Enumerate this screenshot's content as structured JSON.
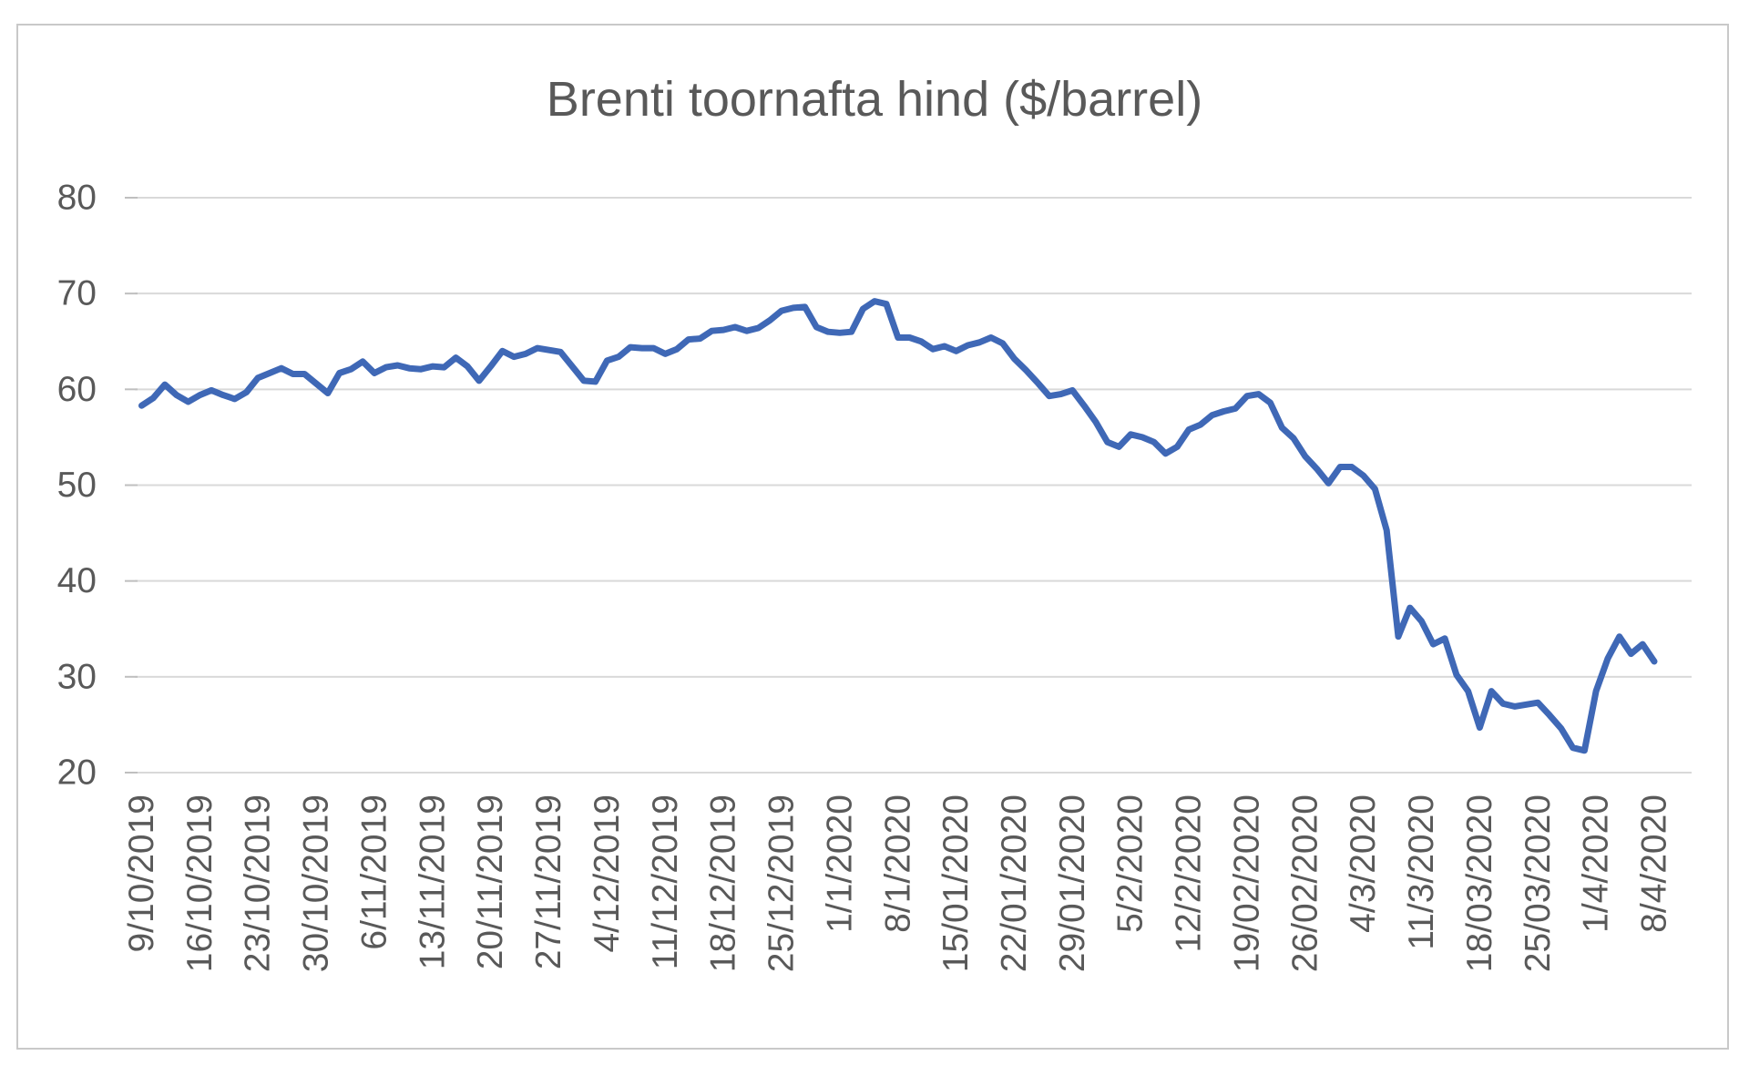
{
  "window": {
    "background": "#ffffff",
    "border_color": "#c9c9c9"
  },
  "chart_data": {
    "type": "line",
    "title": "Brenti toornafta hind ($/barrel)",
    "title_color": "#595959",
    "label_color": "#595959",
    "grid": true,
    "grid_color": "#d9d9d9",
    "tick_color": "#bfbfbf",
    "legend": "none",
    "ylim": [
      20,
      80
    ],
    "y_ticks": [
      80,
      70,
      60,
      50,
      40,
      30,
      20
    ],
    "x_tick_every": 5,
    "x_tick_labels": [
      "9/10/2019",
      "16/10/2019",
      "23/10/2019",
      "30/10/2019",
      "6/11/2019",
      "13/11/2019",
      "20/11/2019",
      "27/11/2019",
      "4/12/2019",
      "11/12/2019",
      "18/12/2019",
      "25/12/2019",
      "1/1/2020",
      "8/1/2020",
      "15/01/2020",
      "22/01/2020",
      "29/01/2020",
      "5/2/2020",
      "12/2/2020",
      "19/02/2020",
      "26/02/2020",
      "4/3/2020",
      "11/3/2020",
      "18/03/2020",
      "25/03/2020",
      "1/4/2020",
      "8/4/2020"
    ],
    "line_width": 7,
    "series": [
      {
        "name": "Brenti toornafta hind",
        "color": "#3f68b6",
        "dates": [
          "9/10/2019",
          "10/10/2019",
          "11/10/2019",
          "14/10/2019",
          "15/10/2019",
          "16/10/2019",
          "17/10/2019",
          "18/10/2019",
          "21/10/2019",
          "22/10/2019",
          "23/10/2019",
          "24/10/2019",
          "25/10/2019",
          "28/10/2019",
          "29/10/2019",
          "30/10/2019",
          "31/10/2019",
          "1/11/2019",
          "4/11/2019",
          "5/11/2019",
          "6/11/2019",
          "7/11/2019",
          "8/11/2019",
          "11/11/2019",
          "12/11/2019",
          "13/11/2019",
          "14/11/2019",
          "15/11/2019",
          "18/11/2019",
          "19/11/2019",
          "20/11/2019",
          "21/11/2019",
          "22/11/2019",
          "25/11/2019",
          "26/11/2019",
          "27/11/2019",
          "28/11/2019",
          "29/11/2019",
          "2/12/2019",
          "3/12/2019",
          "4/12/2019",
          "5/12/2019",
          "6/12/2019",
          "9/12/2019",
          "10/12/2019",
          "11/12/2019",
          "12/12/2019",
          "13/12/2019",
          "16/12/2019",
          "17/12/2019",
          "18/12/2019",
          "19/12/2019",
          "20/12/2019",
          "23/12/2019",
          "24/12/2019",
          "25/12/2019",
          "26/12/2019",
          "27/12/2019",
          "30/12/2019",
          "31/12/2019",
          "1/1/2020",
          "2/1/2020",
          "3/1/2020",
          "6/1/2020",
          "7/1/2020",
          "8/1/2020",
          "9/1/2020",
          "10/1/2020",
          "13/1/2020",
          "14/1/2020",
          "15/1/2020",
          "16/1/2020",
          "17/1/2020",
          "20/1/2020",
          "21/1/2020",
          "22/1/2020",
          "23/1/2020",
          "24/1/2020",
          "27/1/2020",
          "28/1/2020",
          "29/1/2020",
          "30/1/2020",
          "31/1/2020",
          "3/2/2020",
          "4/2/2020",
          "5/2/2020",
          "6/2/2020",
          "7/2/2020",
          "10/2/2020",
          "11/2/2020",
          "12/2/2020",
          "13/2/2020",
          "14/2/2020",
          "17/2/2020",
          "18/2/2020",
          "19/2/2020",
          "20/2/2020",
          "21/2/2020",
          "24/2/2020",
          "25/2/2020",
          "26/2/2020",
          "27/2/2020",
          "28/2/2020",
          "2/3/2020",
          "3/3/2020",
          "4/3/2020",
          "5/3/2020",
          "6/3/2020",
          "9/3/2020",
          "10/3/2020",
          "11/3/2020",
          "12/3/2020",
          "13/3/2020",
          "16/3/2020",
          "17/3/2020",
          "18/3/2020",
          "19/3/2020",
          "20/3/2020",
          "23/3/2020",
          "24/3/2020",
          "25/3/2020",
          "26/3/2020",
          "27/3/2020",
          "30/3/2020",
          "31/3/2020",
          "1/4/2020",
          "2/4/2020",
          "3/4/2020",
          "6/4/2020",
          "7/4/2020",
          "8/4/2020"
        ],
        "values": [
          58.3,
          59.1,
          60.5,
          59.4,
          58.7,
          59.4,
          59.9,
          59.4,
          59.0,
          59.7,
          61.2,
          61.7,
          62.2,
          61.6,
          61.6,
          60.6,
          59.6,
          61.7,
          62.1,
          62.9,
          61.7,
          62.3,
          62.5,
          62.2,
          62.1,
          62.4,
          62.3,
          63.3,
          62.4,
          60.9,
          62.4,
          64.0,
          63.4,
          63.7,
          64.3,
          64.1,
          63.9,
          62.4,
          60.9,
          60.8,
          63.0,
          63.4,
          64.4,
          64.3,
          64.3,
          63.7,
          64.2,
          65.2,
          65.3,
          66.1,
          66.2,
          66.5,
          66.1,
          66.4,
          67.2,
          68.2,
          68.5,
          68.6,
          66.5,
          66.0,
          65.9,
          66.0,
          68.4,
          69.2,
          68.9,
          65.4,
          65.4,
          65.0,
          64.2,
          64.5,
          64.0,
          64.6,
          64.9,
          65.4,
          64.8,
          63.2,
          62.0,
          60.7,
          59.3,
          59.5,
          59.9,
          58.3,
          56.6,
          54.5,
          54.0,
          55.3,
          55.0,
          54.5,
          53.3,
          54.0,
          55.8,
          56.3,
          57.3,
          57.7,
          58.0,
          59.3,
          59.5,
          58.6,
          56.0,
          54.9,
          53.0,
          51.7,
          50.2,
          51.9,
          51.9,
          51.0,
          49.6,
          45.3,
          34.2,
          37.2,
          35.8,
          33.4,
          34.0,
          30.2,
          28.5,
          24.7,
          28.5,
          27.2,
          26.9,
          27.1,
          27.3,
          26.0,
          24.6,
          22.6,
          22.3,
          28.5,
          31.9,
          34.2,
          32.4,
          33.4,
          31.6
        ]
      }
    ]
  }
}
